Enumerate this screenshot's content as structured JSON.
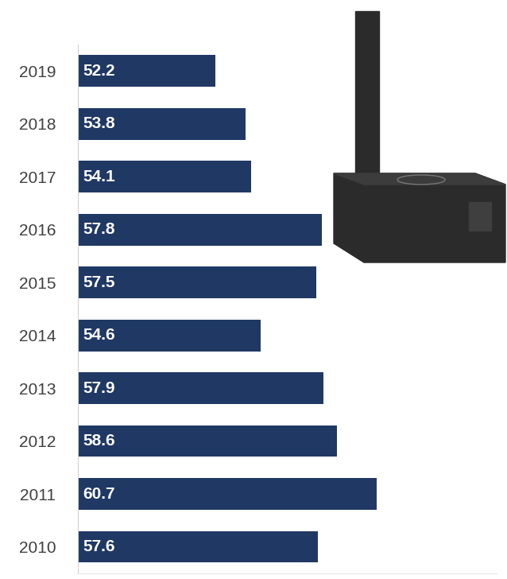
{
  "chart_data": {
    "type": "bar",
    "orientation": "horizontal",
    "categories": [
      "2010",
      "2011",
      "2012",
      "2013",
      "2014",
      "2015",
      "2016",
      "2017",
      "2018",
      "2019"
    ],
    "values": [
      57.6,
      60.7,
      58.6,
      57.9,
      54.6,
      57.5,
      57.8,
      54.1,
      53.8,
      52.2
    ],
    "color": "#203864",
    "xlim": [
      45,
      67
    ],
    "xticks": [],
    "data_labels": true,
    "tick_labels": "y"
  }
}
